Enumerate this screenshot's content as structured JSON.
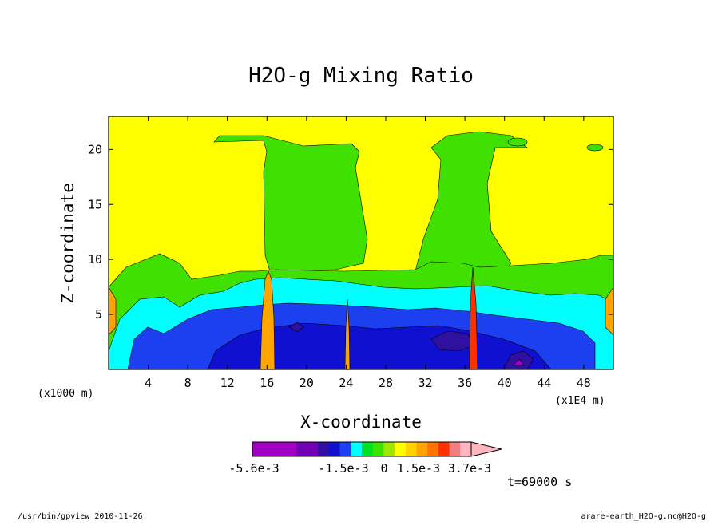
{
  "chart_data": {
    "type": "heatmap",
    "title": "H2O-g Mixing Ratio",
    "xlabel": "X-coordinate",
    "ylabel": "Z-coordinate",
    "x_unit_label": "(x1000 m)",
    "x_scale_label": "(x1E4 m)",
    "xlim": [
      0,
      51
    ],
    "ylim": [
      0,
      23
    ],
    "x_ticks": [
      "4",
      "8",
      "12",
      "16",
      "20",
      "24",
      "28",
      "32",
      "36",
      "40",
      "44",
      "48"
    ],
    "x_tick_values": [
      4,
      8,
      12,
      16,
      20,
      24,
      28,
      32,
      36,
      40,
      44,
      48
    ],
    "y_ticks": [
      "5",
      "10",
      "15",
      "20"
    ],
    "y_tick_values": [
      5,
      10,
      15,
      20
    ],
    "colorbar": {
      "colors": [
        "#a000c0",
        "#a000c0",
        "#a000c0",
        "#a000c0",
        "#7000b0",
        "#7000b0",
        "#3010a0",
        "#1010d0",
        "#1c3ff0",
        "#00ffff",
        "#00e020",
        "#40e000",
        "#a0e600",
        "#ffff00",
        "#ffd200",
        "#ffa500",
        "#ff7400",
        "#ff3000",
        "#f08080",
        "#ffb6c1"
      ],
      "tick_labels": [
        "-5.6e-3",
        "-1.5e-3",
        "0",
        "1.5e-3",
        "3.7e-3"
      ]
    }
  },
  "annotation_time": "t=69000 s",
  "footer": {
    "left": "/usr/bin/gpview   2010-11-26",
    "right": "arare-earth_H2O-g.nc@H2O-g"
  }
}
